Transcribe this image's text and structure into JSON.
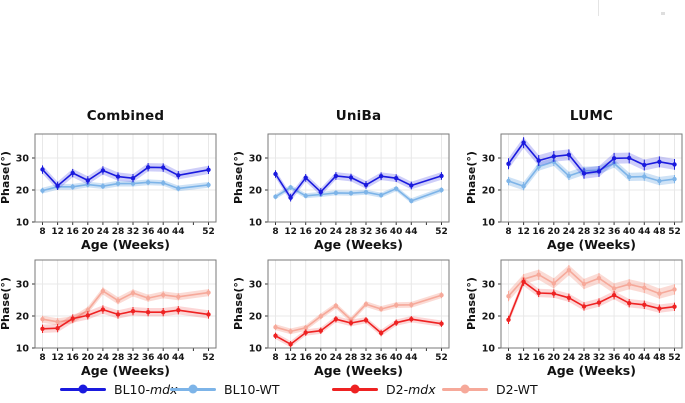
{
  "legend": {
    "items": [
      {
        "prefix": "BL10-",
        "italic": "mdx",
        "suffix": "",
        "color": "#1a1ade"
      },
      {
        "prefix": "BL10-",
        "italic": "",
        "suffix": "WT",
        "color": "#7db4e8"
      },
      {
        "prefix": "D2-",
        "italic": "mdx",
        "suffix": "",
        "color": "#ee2222"
      },
      {
        "prefix": "D2-",
        "italic": "",
        "suffix": "WT",
        "color": "#f6a99a"
      }
    ]
  },
  "chart_data": [
    {
      "type": "line",
      "title": "Combined",
      "xlabel": "Age (Weeks)",
      "ylabel": "Phase(°)",
      "x": [
        8,
        12,
        16,
        20,
        24,
        28,
        32,
        36,
        40,
        44,
        52
      ],
      "xticks": [
        8,
        12,
        16,
        20,
        24,
        28,
        32,
        36,
        40,
        44,
        52
      ],
      "xtick_marks": [
        8,
        12,
        16,
        20,
        24,
        28,
        32,
        36,
        40,
        44,
        48,
        52
      ],
      "yticks": [
        10,
        20,
        30
      ],
      "xlim": [
        6,
        54
      ],
      "ylim": [
        10,
        37.5
      ],
      "grid": true,
      "series": [
        {
          "name": "BL10-mdx",
          "color": "#1a1ade",
          "band_color": "rgba(60,60,230,0.25)",
          "band": 1.3,
          "values": [
            26.4,
            21.3,
            25.3,
            23.0,
            26.1,
            24.2,
            23.7,
            27.1,
            27.0,
            24.6,
            26.3
          ]
        },
        {
          "name": "BL10-WT",
          "color": "#7db4e8",
          "band_color": "rgba(125,180,232,0.38)",
          "band": 0.9,
          "values": [
            19.8,
            21.0,
            21.0,
            21.7,
            21.2,
            22.0,
            22.0,
            22.4,
            22.2,
            20.5,
            21.6
          ]
        }
      ]
    },
    {
      "type": "line",
      "title": "UniBa",
      "xlabel": "Age (Weeks)",
      "ylabel": "Phase(°)",
      "x": [
        8,
        12,
        16,
        20,
        24,
        28,
        32,
        36,
        40,
        44,
        52
      ],
      "xticks": [
        8,
        12,
        16,
        20,
        24,
        28,
        32,
        36,
        40,
        44,
        52
      ],
      "xtick_marks": [
        8,
        12,
        16,
        20,
        24,
        28,
        32,
        36,
        40,
        44,
        48,
        52
      ],
      "yticks": [
        10,
        20,
        30
      ],
      "xlim": [
        6,
        54
      ],
      "ylim": [
        10,
        37.5
      ],
      "grid": true,
      "series": [
        {
          "name": "BL10-mdx",
          "color": "#1a1ade",
          "band_color": "rgba(60,60,230,0.25)",
          "band": 1.2,
          "values": [
            25.0,
            17.6,
            23.8,
            19.4,
            24.4,
            23.9,
            21.6,
            24.3,
            23.7,
            21.4,
            24.4
          ]
        },
        {
          "name": "BL10-WT",
          "color": "#7db4e8",
          "band_color": "rgba(125,180,232,0.38)",
          "band": 0.8,
          "values": [
            17.9,
            20.8,
            18.2,
            18.6,
            19.1,
            19.0,
            19.3,
            18.4,
            20.4,
            16.6,
            20.0
          ]
        }
      ]
    },
    {
      "type": "line",
      "title": "LUMC",
      "xlabel": "Age (Weeks)",
      "ylabel": "Phase(°)",
      "x": [
        8,
        12,
        16,
        20,
        24,
        28,
        32,
        36,
        40,
        44,
        48,
        52
      ],
      "xticks": [
        8,
        12,
        16,
        20,
        24,
        28,
        32,
        36,
        40,
        44,
        48,
        52
      ],
      "yticks": [
        10,
        20,
        30
      ],
      "xlim": [
        6,
        54
      ],
      "ylim": [
        10,
        37.5
      ],
      "grid": true,
      "series": [
        {
          "name": "BL10-mdx",
          "color": "#1a1ade",
          "band_color": "rgba(60,60,230,0.25)",
          "band": 1.7,
          "values": [
            28.2,
            34.8,
            29.2,
            30.5,
            31.0,
            25.2,
            25.8,
            29.9,
            30.0,
            27.8,
            28.8,
            28.0
          ]
        },
        {
          "name": "BL10-WT",
          "color": "#7db4e8",
          "band_color": "rgba(125,180,232,0.38)",
          "band": 1.3,
          "values": [
            22.8,
            21.2,
            27.3,
            28.8,
            24.4,
            26.0,
            26.2,
            28.3,
            24.1,
            24.2,
            22.8,
            23.4
          ]
        }
      ]
    },
    {
      "type": "line",
      "title": "",
      "xlabel": "Age (Weeks)",
      "ylabel": "Phase(°)",
      "x": [
        8,
        12,
        16,
        20,
        24,
        28,
        32,
        36,
        40,
        44,
        52
      ],
      "xticks": [
        8,
        12,
        16,
        20,
        24,
        28,
        32,
        36,
        40,
        44,
        52
      ],
      "xtick_marks": [
        8,
        12,
        16,
        20,
        24,
        28,
        32,
        36,
        40,
        44,
        48,
        52
      ],
      "yticks": [
        10,
        20,
        30
      ],
      "xlim": [
        6,
        54
      ],
      "ylim": [
        10,
        37.5
      ],
      "grid": true,
      "series": [
        {
          "name": "D2-mdx",
          "color": "#ee2222",
          "band_color": "rgba(240,70,70,0.22)",
          "band": 1.3,
          "values": [
            16.0,
            16.2,
            19.2,
            20.2,
            22.0,
            20.5,
            21.5,
            21.2,
            21.2,
            21.8,
            20.5
          ]
        },
        {
          "name": "D2-WT",
          "color": "#f6a99a",
          "band_color": "rgba(246,169,154,0.42)",
          "band": 1.1,
          "values": [
            19.0,
            18.2,
            18.8,
            21.8,
            27.8,
            24.8,
            27.2,
            25.6,
            26.6,
            26.0,
            27.3
          ]
        }
      ]
    },
    {
      "type": "line",
      "title": "",
      "xlabel": "Age (Weeks)",
      "ylabel": "Phase(°)",
      "x": [
        8,
        12,
        16,
        20,
        24,
        28,
        32,
        36,
        40,
        44,
        52
      ],
      "xticks": [
        8,
        12,
        16,
        20,
        24,
        28,
        32,
        36,
        40,
        44,
        52
      ],
      "xtick_marks": [
        8,
        12,
        16,
        20,
        24,
        28,
        32,
        36,
        40,
        44,
        48,
        52
      ],
      "yticks": [
        10,
        20,
        30
      ],
      "xlim": [
        6,
        54
      ],
      "ylim": [
        10,
        37.5
      ],
      "grid": true,
      "series": [
        {
          "name": "D2-mdx",
          "color": "#ee2222",
          "band_color": "rgba(240,70,70,0.22)",
          "band": 1.0,
          "values": [
            13.8,
            11.2,
            14.8,
            15.4,
            19.0,
            17.8,
            18.7,
            14.7,
            17.9,
            19.0,
            17.6
          ]
        },
        {
          "name": "D2-WT",
          "color": "#f6a99a",
          "band_color": "rgba(246,169,154,0.42)",
          "band": 0.9,
          "values": [
            16.5,
            15.2,
            16.3,
            19.9,
            23.2,
            18.8,
            23.7,
            22.2,
            23.4,
            23.5,
            26.5
          ]
        }
      ]
    },
    {
      "type": "line",
      "title": "",
      "xlabel": "Age (Weeks)",
      "ylabel": "Phase(°)",
      "x": [
        8,
        12,
        16,
        20,
        24,
        28,
        32,
        36,
        40,
        44,
        48,
        52
      ],
      "xticks": [
        8,
        12,
        16,
        20,
        24,
        28,
        32,
        36,
        40,
        44,
        48,
        52
      ],
      "yticks": [
        10,
        20,
        30
      ],
      "xlim": [
        6,
        54
      ],
      "ylim": [
        10,
        37.5
      ],
      "grid": true,
      "series": [
        {
          "name": "D2-mdx",
          "color": "#ee2222",
          "band_color": "rgba(240,70,70,0.22)",
          "band": 1.3,
          "values": [
            18.8,
            30.7,
            27.2,
            27.0,
            25.7,
            23.0,
            24.2,
            26.5,
            24.0,
            23.5,
            22.3,
            22.9
          ]
        },
        {
          "name": "D2-WT",
          "color": "#f6a99a",
          "band_color": "rgba(246,169,154,0.42)",
          "band": 1.6,
          "values": [
            26.2,
            31.5,
            32.9,
            30.2,
            34.3,
            30.0,
            31.8,
            28.6,
            29.9,
            28.8,
            27.0,
            28.3
          ]
        }
      ]
    }
  ]
}
